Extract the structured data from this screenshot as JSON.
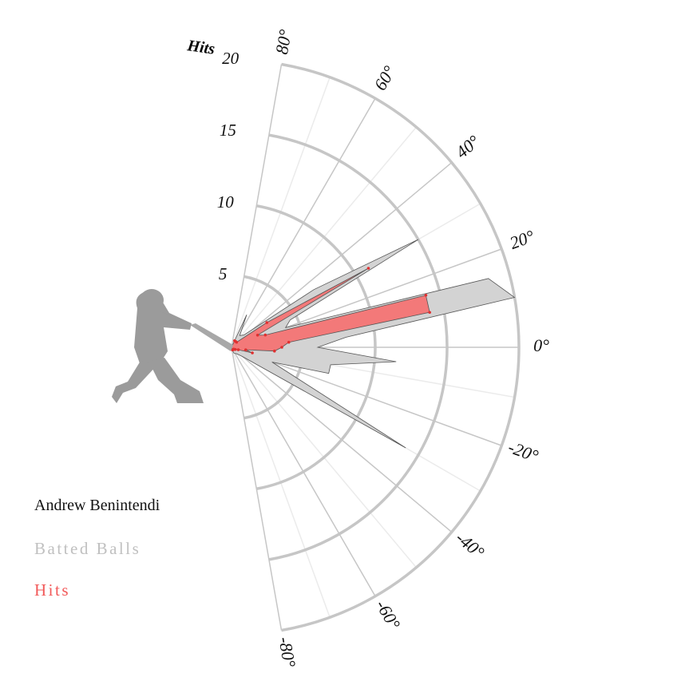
{
  "chart_data": {
    "type": "radial-area",
    "radial_axis_label": "Hits",
    "radial_ticks": [
      5,
      10,
      15,
      20
    ],
    "radial_range": [
      0,
      20
    ],
    "angle_range": [
      -80,
      80
    ],
    "angle_ticks": [
      {
        "value": 80,
        "label": "80°"
      },
      {
        "value": 60,
        "label": "60°"
      },
      {
        "value": 40,
        "label": "40°"
      },
      {
        "value": 20,
        "label": "20°"
      },
      {
        "value": 0,
        "label": "0°"
      },
      {
        "value": -20,
        "label": "-20°"
      },
      {
        "value": -40,
        "label": "-40°"
      },
      {
        "value": -60,
        "label": "-60°"
      },
      {
        "value": -80,
        "label": "-80°"
      }
    ],
    "series": [
      {
        "name": "Batted Balls",
        "color": "#d3d3d3",
        "points": [
          {
            "angle": 65,
            "value": 2.5
          },
          {
            "angle": 55,
            "value": 1.0
          },
          {
            "angle": 45,
            "value": 1.2
          },
          {
            "angle": 35,
            "value": 7.0
          },
          {
            "angle": 30,
            "value": 15.0
          },
          {
            "angle": 25,
            "value": 4.5
          },
          {
            "angle": 20,
            "value": 4.0
          },
          {
            "angle": 15,
            "value": 18.5
          },
          {
            "angle": 10,
            "value": 20.0
          },
          {
            "angle": 5,
            "value": 8.0
          },
          {
            "angle": 0,
            "value": 6.0
          },
          {
            "angle": -5,
            "value": 11.5
          },
          {
            "angle": -10,
            "value": 7.0
          },
          {
            "angle": -15,
            "value": 7.0
          },
          {
            "angle": -20,
            "value": 3.0
          },
          {
            "angle": -30,
            "value": 14.0
          },
          {
            "angle": -40,
            "value": 1.0
          },
          {
            "angle": -50,
            "value": 0.6
          },
          {
            "angle": -60,
            "value": 0.5
          },
          {
            "angle": -70,
            "value": 0.4
          }
        ]
      },
      {
        "name": "Hits",
        "color": "#f47474",
        "points": [
          {
            "angle": 65,
            "value": 0.5
          },
          {
            "angle": 55,
            "value": 0.5
          },
          {
            "angle": 45,
            "value": 0.5
          },
          {
            "angle": 35,
            "value": 3.0
          },
          {
            "angle": 30,
            "value": 11.0
          },
          {
            "angle": 25,
            "value": 2.0
          },
          {
            "angle": 20,
            "value": 2.5
          },
          {
            "angle": 15,
            "value": 14.0
          },
          {
            "angle": 10,
            "value": 14.0
          },
          {
            "angle": 5,
            "value": 4.0
          },
          {
            "angle": 0,
            "value": 3.5
          },
          {
            "angle": -5,
            "value": 3.0
          },
          {
            "angle": -10,
            "value": 1.0
          },
          {
            "angle": -15,
            "value": 1.5
          },
          {
            "angle": -20,
            "value": 0.5
          },
          {
            "angle": -30,
            "value": 0.3
          },
          {
            "angle": -40,
            "value": 0.2
          },
          {
            "angle": -50,
            "value": 0.2
          },
          {
            "angle": -60,
            "value": 0.2
          },
          {
            "angle": -70,
            "value": 0.2
          }
        ]
      }
    ],
    "legend_placement": "bottom-left",
    "grid": true
  },
  "legend": {
    "player": "Andrew Benintendi",
    "batted_label": "Batted Balls",
    "hits_label": "Hits",
    "batted_color": "#c0c0c0",
    "hits_color": "#f25a5a"
  },
  "icons": {
    "batter": "batter-silhouette-icon"
  },
  "colors": {
    "grid_major": "#c6c6c6",
    "grid_minor": "#ebebeb",
    "silhouette": "#9b9b9b"
  }
}
